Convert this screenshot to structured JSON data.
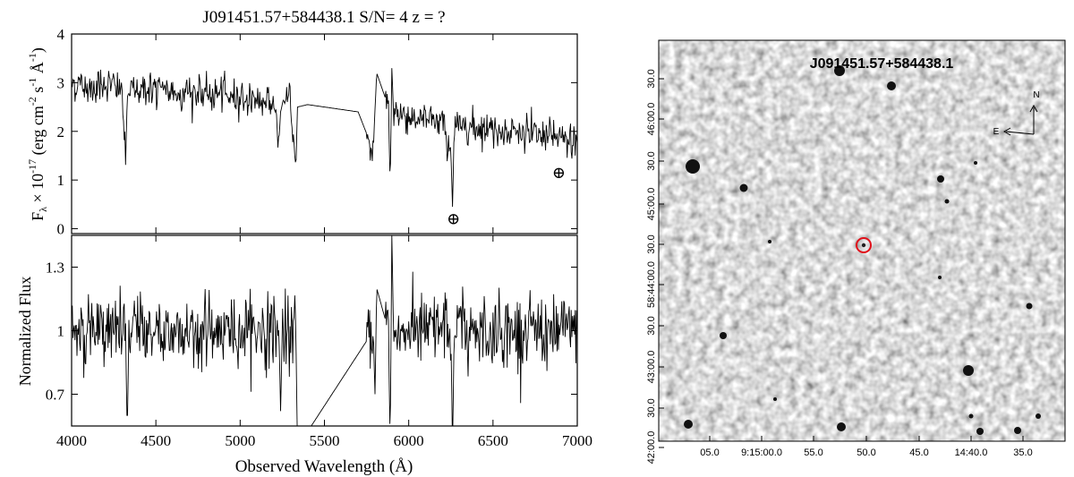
{
  "figure": {
    "title": "J091451.57+584438.1  S/N= 4  z = ?"
  },
  "chart_data": [
    {
      "type": "line",
      "panel": "flux",
      "ylabel": "Fλ × 10⁻¹⁷ (erg cm⁻² s⁻¹ Å⁻¹)",
      "ylabel_main": "F",
      "ylabel_sub": "λ",
      "ylabel_rest": " × 10",
      "ylabel_exp": "-17",
      "ylabel_units": " (erg cm",
      "ylabel_units_exp1": "-2",
      "ylabel_units_s": " s",
      "ylabel_units_exp2": "-1",
      "ylabel_units_A": " Å",
      "ylabel_units_exp3": "-1",
      "ylabel_close": ")",
      "xlim": [
        4000,
        7000
      ],
      "ylim": [
        -0.1,
        4.0
      ],
      "yticks": [
        0,
        1,
        2,
        3,
        4
      ],
      "telluric_markers": [
        {
          "x": 6265,
          "y": 0.2,
          "symbol": "⊕"
        },
        {
          "x": 6890,
          "y": 1.15,
          "symbol": "⊕"
        }
      ],
      "series": [
        {
          "x": [
            4000,
            4100,
            4200,
            4300,
            4320,
            4330,
            4340,
            4400,
            4500,
            4600,
            4700,
            4800,
            4900,
            5000,
            5100,
            5200,
            5230,
            5240,
            5250,
            5300,
            5330,
            5340,
            5400,
            5500,
            5600,
            5700,
            5790,
            5800,
            5810,
            5880,
            5890,
            5900,
            5910,
            6000,
            6100,
            6200,
            6250,
            6260,
            6270,
            6300,
            6400,
            6500,
            6600,
            6700,
            6800,
            6900,
            7000
          ],
          "y": [
            3.0,
            2.9,
            3.0,
            2.85,
            1.3,
            2.7,
            2.8,
            2.9,
            2.85,
            2.8,
            2.8,
            2.75,
            2.75,
            2.7,
            2.65,
            2.6,
            1.8,
            2.4,
            2.55,
            2.6,
            1.15,
            2.5,
            2.55,
            2.5,
            2.45,
            2.4,
            1.6,
            2.45,
            3.2,
            2.5,
            0.85,
            3.3,
            2.4,
            2.3,
            2.25,
            2.2,
            1.6,
            0.45,
            2.1,
            2.15,
            2.1,
            2.05,
            2.0,
            1.95,
            1.9,
            1.85,
            1.8
          ]
        }
      ]
    },
    {
      "type": "line",
      "panel": "normalized",
      "ylabel": "Normalized Flux",
      "xlabel": "Observed Wavelength (Å)",
      "xlim": [
        4000,
        7000
      ],
      "ylim": [
        0.55,
        1.45
      ],
      "yticks": [
        0.7,
        1,
        1.3
      ],
      "ytick_labels": [
        "0.7",
        "1",
        "1.3"
      ],
      "xticks": [
        4000,
        4500,
        5000,
        5500,
        6000,
        6500,
        7000
      ],
      "series": [
        {
          "x": [
            4000,
            4320,
            4330,
            4340,
            5230,
            5240,
            5250,
            5330,
            5340,
            5790,
            5800,
            5810,
            5880,
            5890,
            5900,
            5910,
            6250,
            6260,
            6270,
            7000
          ],
          "y": [
            1.0,
            1.0,
            0.5,
            1.0,
            1.0,
            0.62,
            1.0,
            1.0,
            0.45,
            1.0,
            0.7,
            1.2,
            1.0,
            0.45,
            1.45,
            1.0,
            1.0,
            0.45,
            1.0,
            1.0
          ]
        }
      ]
    }
  ],
  "finder": {
    "label": "J091451.57+584438.1",
    "compass_n": "N",
    "compass_e": "E",
    "ra_ticks": [
      "05.0",
      "9:15:00.0",
      "55.0",
      "50.0",
      "45.0",
      "14:40.0",
      "35.0"
    ],
    "dec_ticks": [
      "30.0",
      "46:00.0",
      "30.0",
      "45:00.0",
      "30.0",
      "58:44:00.0",
      "30.0",
      "43:00.0",
      "30.0",
      "42:00.0"
    ],
    "marker_color": "#e0101a"
  }
}
